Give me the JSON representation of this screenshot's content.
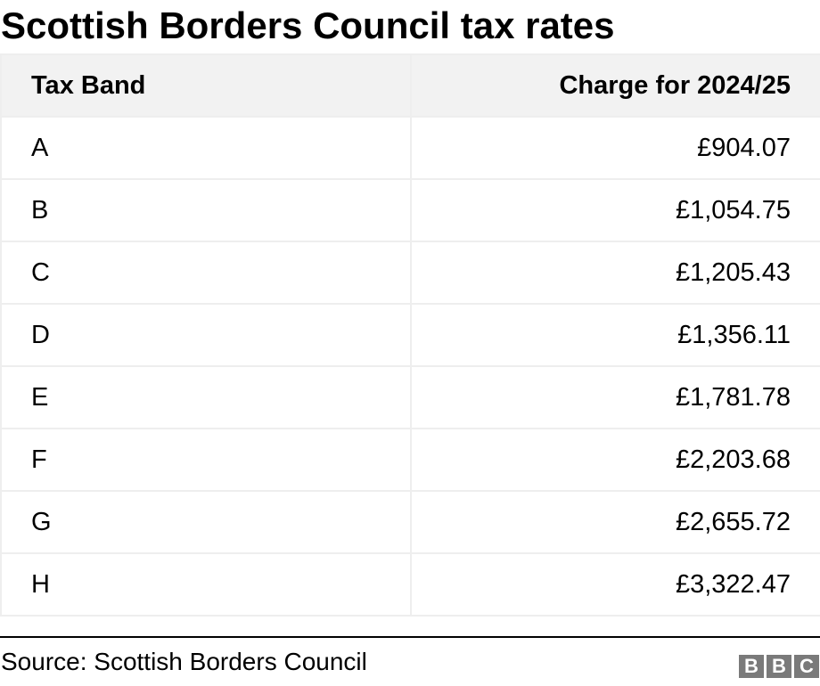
{
  "title": "Scottish Borders Council tax rates",
  "chart_data": {
    "type": "table",
    "title": "Scottish Borders Council tax rates",
    "columns": [
      "Tax Band",
      "Charge for 2024/25"
    ],
    "rows": [
      [
        "A",
        "£904.07"
      ],
      [
        "B",
        "£1,054.75"
      ],
      [
        "C",
        "£1,205.43"
      ],
      [
        "D",
        "£1,356.11"
      ],
      [
        "E",
        "£1,781.78"
      ],
      [
        "F",
        "£2,203.68"
      ],
      [
        "G",
        "£2,655.72"
      ],
      [
        "H",
        "£3,322.47"
      ]
    ]
  },
  "source": "Source: Scottish Borders Council",
  "logo": {
    "letters": [
      "B",
      "B",
      "C"
    ],
    "color": "#7a7a7a"
  },
  "colors": {
    "header_bg": "#f2f2f2",
    "border": "#eeeeee",
    "divider": "#000000"
  }
}
